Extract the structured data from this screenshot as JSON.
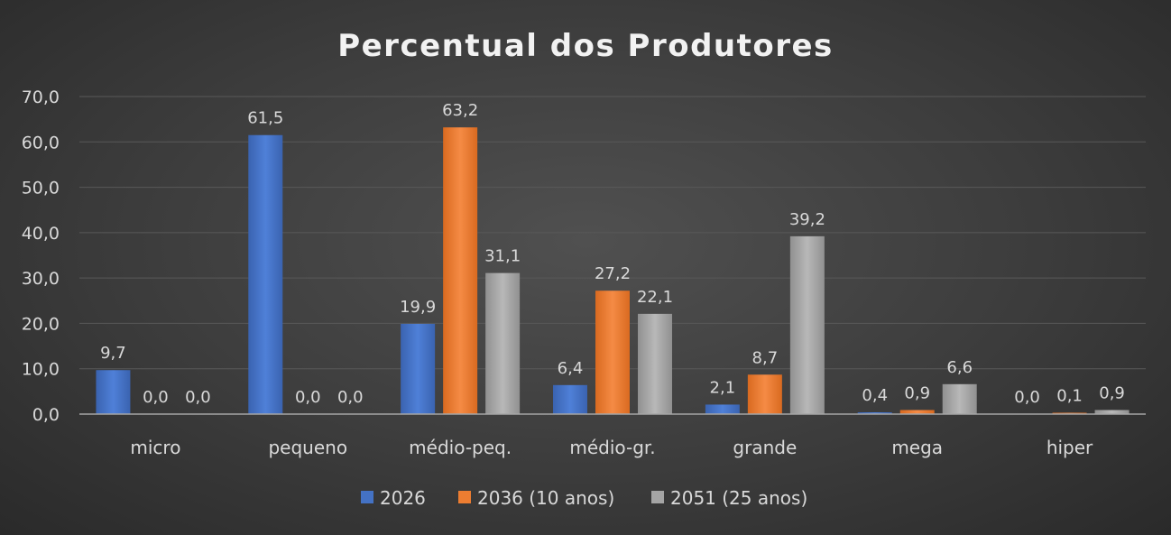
{
  "chart_data": {
    "type": "bar",
    "title": "Percentual dos Produtores",
    "categories": [
      "micro",
      "pequeno",
      "médio-peq.",
      "médio-gr.",
      "grande",
      "mega",
      "hiper"
    ],
    "series": [
      {
        "name": "2026",
        "values": [
          9.7,
          61.5,
          19.9,
          6.4,
          2.1,
          0.4,
          0.0
        ],
        "labels": [
          "9,7",
          "61,5",
          "19,9",
          "6,4",
          "2,1",
          "0,4",
          "0,0"
        ],
        "color": "#4472c4"
      },
      {
        "name": "2036 (10 anos)",
        "values": [
          0.0,
          0.0,
          63.2,
          27.2,
          8.7,
          0.9,
          0.1
        ],
        "labels": [
          "0,0",
          "0,0",
          "63,2",
          "27,2",
          "8,7",
          "0,9",
          "0,1"
        ],
        "color": "#ed7d31"
      },
      {
        "name": "2051 (25 anos)",
        "values": [
          0.0,
          0.0,
          31.1,
          22.1,
          39.2,
          6.6,
          0.9
        ],
        "labels": [
          "0,0",
          "0,0",
          "31,1",
          "22,1",
          "39,2",
          "6,6",
          "0,9"
        ],
        "color": "#a5a5a5"
      }
    ],
    "yticks": [
      0,
      10,
      20,
      30,
      40,
      50,
      60,
      70
    ],
    "ytick_labels": [
      "0,0",
      "10,0",
      "20,0",
      "30,0",
      "40,0",
      "50,0",
      "60,0",
      "70,0"
    ],
    "ylim": [
      0,
      70
    ],
    "grid": true,
    "legend": "bottom",
    "xlabel": "",
    "ylabel": ""
  }
}
